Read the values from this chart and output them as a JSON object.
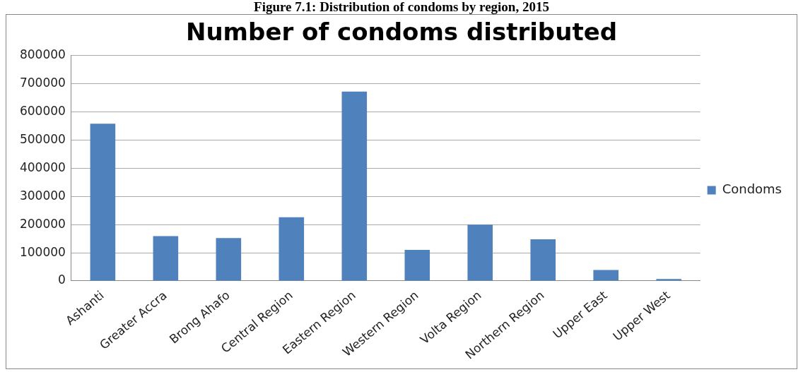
{
  "chart_data": {
    "type": "bar",
    "title": "Number of condoms distributed",
    "annotations": [
      "Figure 7.1: Distribution of condoms by region, 2015"
    ],
    "categories": [
      "Ashanti",
      "Greater Accra",
      "Brong Ahafo",
      "Central Region",
      "Eastern Region",
      "Western Region",
      "Volta Region",
      "Northern Region",
      "Upper East",
      "Upper West"
    ],
    "series": [
      {
        "name": "Condoms",
        "color": "#4f81bd",
        "values": [
          558000,
          159000,
          152000,
          226000,
          672000,
          110000,
          200000,
          148000,
          39000,
          7000
        ]
      }
    ],
    "ylim": [
      0,
      800000
    ],
    "yticks": [
      0,
      100000,
      200000,
      300000,
      400000,
      500000,
      600000,
      700000,
      800000
    ],
    "grid": "y",
    "legend": "right"
  }
}
